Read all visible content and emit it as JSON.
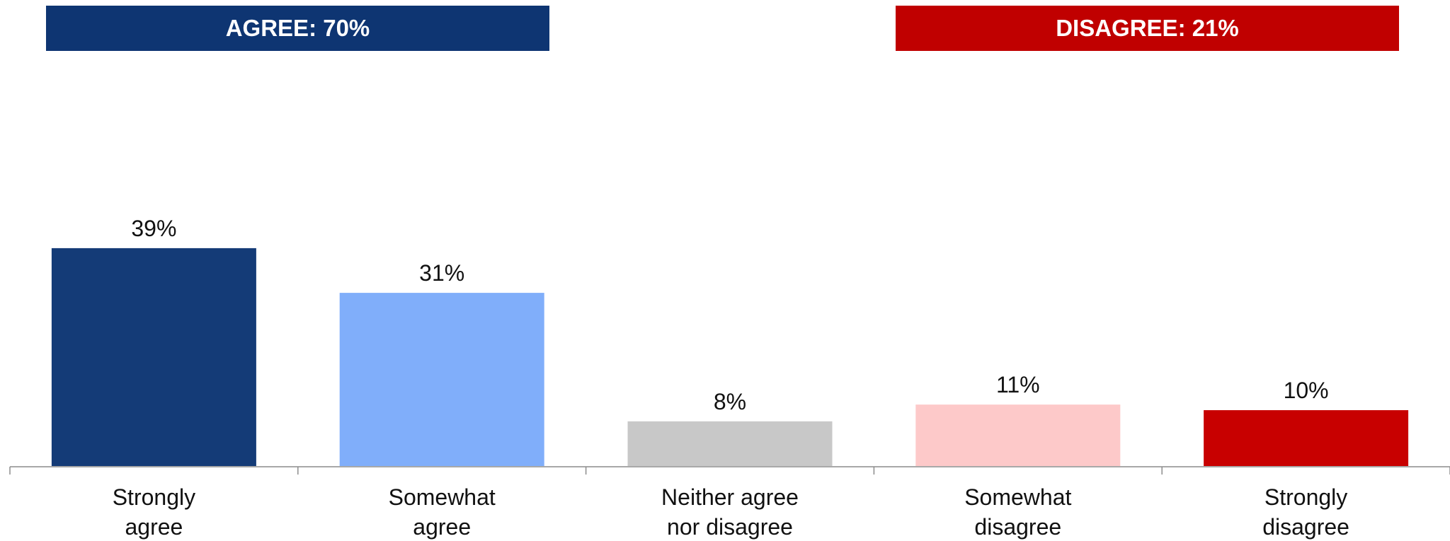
{
  "banners": {
    "agree": {
      "label": "AGREE: 70%",
      "color": "#0E3572"
    },
    "disagree": {
      "label": "DISAGREE: 21%",
      "color": "#C00000"
    }
  },
  "chart_data": {
    "type": "bar",
    "title": "",
    "xlabel": "",
    "ylabel": "",
    "ylim": [
      0,
      45
    ],
    "grid": false,
    "legend": "none",
    "categories": [
      [
        "Strongly",
        "agree"
      ],
      [
        "Somewhat",
        "agree"
      ],
      [
        "Neither agree",
        "nor disagree"
      ],
      [
        "Somewhat",
        "disagree"
      ],
      [
        "Strongly",
        "disagree"
      ]
    ],
    "values": [
      39,
      31,
      8,
      11,
      10
    ],
    "data_labels": [
      "39%",
      "31%",
      "8%",
      "11%",
      "10%"
    ],
    "colors": [
      "#143B77",
      "#80AEFA",
      "#C8C8C8",
      "#FDC9C9",
      "#C80000"
    ]
  }
}
